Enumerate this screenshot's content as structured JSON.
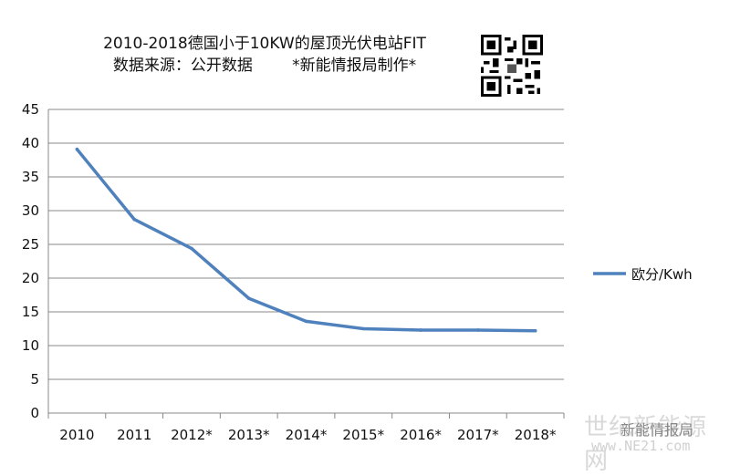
{
  "chart_data": {
    "type": "line",
    "title_line1": "2010-2018德国小于10KW的屋顶光伏电站FIT",
    "title_line2": "数据来源：公开数据        *新能情报局制作*",
    "categories": [
      "2010",
      "2011",
      "2012*",
      "2013*",
      "2014*",
      "2015*",
      "2016*",
      "2017*",
      "2018*"
    ],
    "series": [
      {
        "name": "欧分/Kwh",
        "values": [
          39.1,
          28.7,
          24.4,
          17.0,
          13.6,
          12.5,
          12.3,
          12.3,
          12.2
        ],
        "color": "#4f81bd"
      }
    ],
    "ylim": [
      0,
      45
    ],
    "yticks": [
      "0",
      "5",
      "10",
      "15",
      "20",
      "25",
      "30",
      "35",
      "40",
      "45"
    ],
    "grid": true,
    "legend": "right"
  },
  "watermark": {
    "big": "世纪新能源网",
    "mid": "新能情报局",
    "url": "www.NE21.com"
  }
}
